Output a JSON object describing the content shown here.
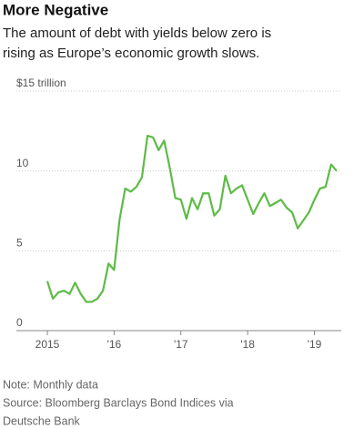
{
  "chart_data": {
    "type": "line",
    "title": "More Negative",
    "subtitle": [
      "The amount of debt with yields below zero is",
      "rising as Europe’s economic growth slows."
    ],
    "notes": [
      "Note: Monthly data",
      "Source: Bloomberg Barclays Bond Indices via",
      "Deutsche Bank"
    ],
    "categories": [
      "2015",
      null,
      null,
      null,
      null,
      null,
      null,
      null,
      null,
      null,
      null,
      null,
      "'16",
      null,
      null,
      null,
      null,
      null,
      null,
      null,
      null,
      null,
      null,
      null,
      "'17",
      null,
      null,
      null,
      null,
      null,
      null,
      null,
      null,
      null,
      null,
      null,
      "'18",
      null,
      null,
      null,
      null,
      null,
      null,
      null,
      null,
      null,
      null,
      null,
      "'19",
      null,
      null,
      null,
      null
    ],
    "series": [
      {
        "color": "#5dbb46",
        "values": [
          3.1,
          2.0,
          2.4,
          2.5,
          2.3,
          3.0,
          2.3,
          1.8,
          1.8,
          2.0,
          2.5,
          4.2,
          3.8,
          7.0,
          8.9,
          8.7,
          9.0,
          9.6,
          12.2,
          12.1,
          11.3,
          11.9,
          10.2,
          8.3,
          8.2,
          7.0,
          8.3,
          7.6,
          8.6,
          8.6,
          7.2,
          7.6,
          9.7,
          8.6,
          8.9,
          9.1,
          8.2,
          7.3,
          8.0,
          8.6,
          7.8,
          8.0,
          8.2,
          7.7,
          7.4,
          6.4,
          6.9,
          7.4,
          8.2,
          8.9,
          9.0,
          10.4,
          10.0
        ]
      }
    ],
    "ylim": [
      0,
      15
    ],
    "yticks": [
      0,
      5,
      10,
      {
        "value": 15,
        "label": "$15 trillion"
      }
    ],
    "grid": true
  }
}
